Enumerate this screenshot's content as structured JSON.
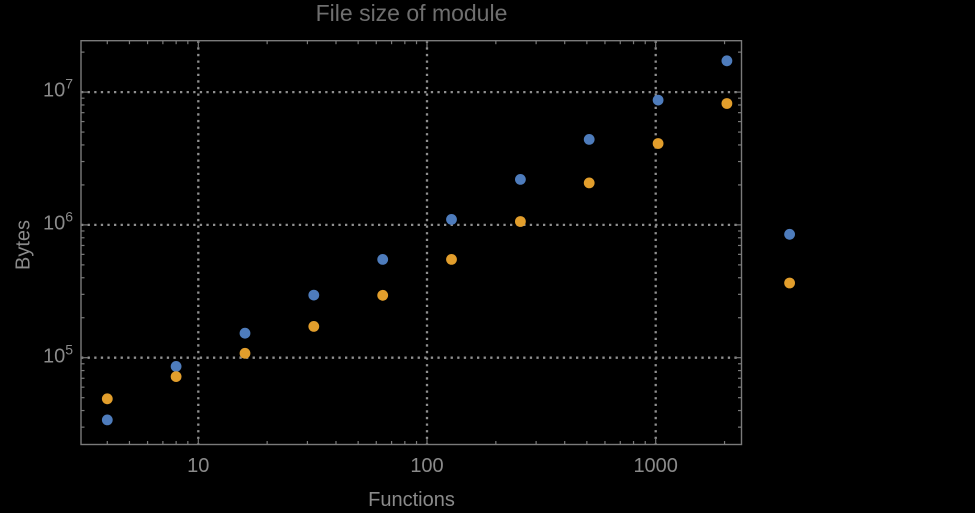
{
  "title": "File size of module",
  "colors": {
    "background": "#000000",
    "frame": "#7a7a7a",
    "gridline": "#8f8f8f",
    "title_text": "#6f6f6f",
    "label_text": "#8a8a8a",
    "series_blue": "#4e7cbc",
    "series_orange": "#e29e2c"
  },
  "chart_data": {
    "type": "scatter",
    "title": "File size of module",
    "xlabel": "Functions",
    "ylabel": "Bytes",
    "x_scale": "log",
    "y_scale": "log",
    "xlim": [
      3.07,
      2370
    ],
    "ylim": [
      22200,
      24400000
    ],
    "grid": "dotted major gridlines, minor tick marks on all four frame edges",
    "legend": "none",
    "marker": "filled circle",
    "marker_radius_px": 5.4,
    "x_ticks": [
      {
        "value": 10,
        "label": "10"
      },
      {
        "value": 100,
        "label": "100"
      },
      {
        "value": 1000,
        "label": "1000"
      }
    ],
    "y_ticks": [
      {
        "value": 100000,
        "base": "10",
        "exp": "5"
      },
      {
        "value": 1000000,
        "base": "10",
        "exp": "6"
      },
      {
        "value": 10000000,
        "base": "10",
        "exp": "7"
      }
    ],
    "series": [
      {
        "name": "blue",
        "color": "#4e7cbc",
        "points": [
          [
            4,
            34000
          ],
          [
            8,
            86000
          ],
          [
            16,
            153000
          ],
          [
            32,
            296000
          ],
          [
            64,
            550000
          ],
          [
            128,
            1100000
          ],
          [
            256,
            2200000
          ],
          [
            512,
            4400000
          ],
          [
            1024,
            8700000
          ],
          [
            2048,
            17200000
          ],
          [
            3850,
            850000
          ]
        ]
      },
      {
        "name": "orange",
        "color": "#e29e2c",
        "points": [
          [
            4,
            49000
          ],
          [
            8,
            72000
          ],
          [
            16,
            108000
          ],
          [
            32,
            172000
          ],
          [
            64,
            295000
          ],
          [
            128,
            550000
          ],
          [
            256,
            1060000
          ],
          [
            512,
            2070000
          ],
          [
            1024,
            4100000
          ],
          [
            2048,
            8200000
          ],
          [
            3850,
            365000
          ]
        ]
      }
    ]
  }
}
